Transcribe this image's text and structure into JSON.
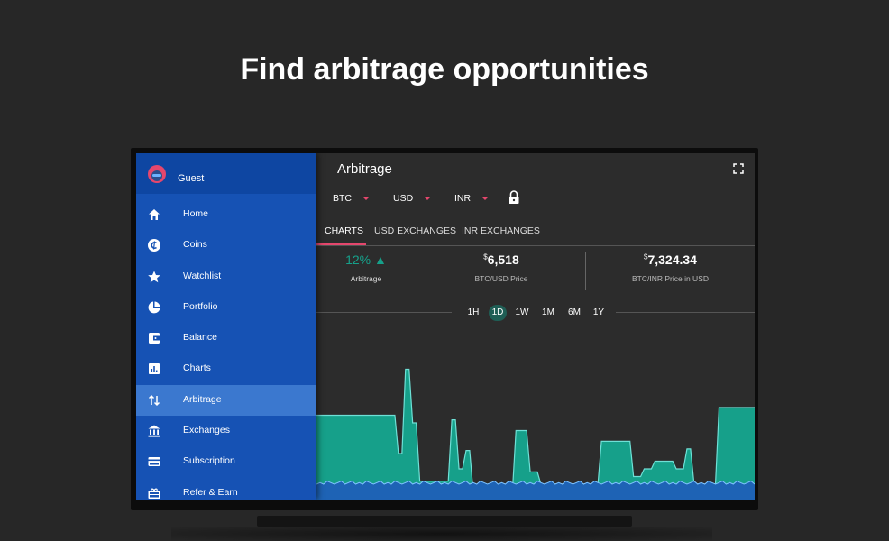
{
  "headline": "Find arbitrage opportunities",
  "drawer": {
    "user": "Guest",
    "items": [
      {
        "label": "Home",
        "icon": "home-icon"
      },
      {
        "label": "Coins",
        "icon": "coin-icon"
      },
      {
        "label": "Watchlist",
        "icon": "star-icon"
      },
      {
        "label": "Portfolio",
        "icon": "pie-chart-icon"
      },
      {
        "label": "Balance",
        "icon": "wallet-icon"
      },
      {
        "label": "Charts",
        "icon": "bar-chart-icon"
      },
      {
        "label": "Arbitrage",
        "icon": "swap-arrows-icon",
        "active": true
      },
      {
        "label": "Exchanges",
        "icon": "bank-icon"
      },
      {
        "label": "Subscription",
        "icon": "card-icon"
      },
      {
        "label": "Refer & Earn",
        "icon": "gift-icon"
      }
    ]
  },
  "main": {
    "title": "Arbitrage",
    "selectors": {
      "coin": "BTC",
      "currency1": "USD",
      "currency2": "INR"
    },
    "tabs": [
      "CHARTS",
      "USD EXCHANGES",
      "INR EXCHANGES"
    ],
    "stats": {
      "arbitrage_value": "12%",
      "arbitrage_label": "Arbitrage",
      "usd_symbol": "$",
      "usd_price": "6,518",
      "usd_label": "BTC/USD Price",
      "inr_symbol": "$",
      "inr_price": "7,324.34",
      "inr_label": "BTC/INR Price in USD"
    },
    "ranges": [
      "1H",
      "1D",
      "1W",
      "1M",
      "6M",
      "1Y"
    ],
    "active_range": "1D"
  },
  "colors": {
    "accent": "#e5476d",
    "teal": "#16a08a",
    "blue_area": "#1e63b5",
    "drawer": "#1652b4",
    "drawer_active": "#3b78cf"
  },
  "chart_data": {
    "type": "area",
    "series": [
      {
        "values": [
          55,
          55,
          55,
          55,
          55,
          55,
          55,
          55,
          55,
          55,
          55,
          55,
          55,
          55,
          55,
          55,
          55,
          55,
          55,
          55,
          55,
          55,
          55,
          30,
          30,
          85,
          85,
          50,
          50,
          12,
          12,
          12,
          12,
          12,
          12,
          12,
          12,
          12,
          52,
          52,
          20,
          20,
          32,
          32,
          5,
          5,
          5,
          5,
          5,
          5,
          5,
          5,
          5,
          5,
          5,
          5,
          45,
          45,
          45,
          45,
          18,
          18,
          18,
          10,
          10,
          10,
          10,
          10,
          10,
          10,
          10,
          8,
          8,
          8,
          8,
          10,
          10,
          10,
          10,
          10,
          38,
          38,
          38,
          38,
          38,
          38,
          38,
          38,
          38,
          15,
          15,
          15,
          20,
          20,
          20,
          25,
          25,
          25,
          25,
          25,
          25,
          20,
          20,
          20,
          33,
          33,
          10,
          10,
          10,
          10,
          10,
          10,
          10,
          60,
          60,
          60,
          60,
          60,
          60,
          60,
          60,
          60,
          60,
          60
        ]
      },
      {
        "values": [
          10,
          11,
          10,
          12,
          11,
          10,
          11,
          12,
          10,
          11,
          12,
          10,
          11,
          10,
          12,
          11,
          10,
          11,
          12,
          10,
          11,
          10,
          12,
          11,
          10,
          11,
          12,
          10,
          11,
          10,
          12,
          11,
          10,
          11,
          12,
          10,
          11,
          10,
          12,
          11,
          10,
          11,
          12,
          10,
          11,
          10,
          12,
          11,
          10,
          11,
          12,
          10,
          11,
          10,
          12,
          11,
          10,
          11,
          12,
          10,
          11,
          10,
          12,
          11,
          10,
          11,
          12,
          10,
          11,
          10,
          12,
          11,
          10,
          11,
          12,
          10,
          11,
          10,
          12,
          11,
          10,
          11,
          12,
          10,
          11,
          10,
          12,
          11,
          10,
          11,
          12,
          10,
          11,
          10,
          12,
          11,
          10,
          11,
          12,
          10,
          11,
          10,
          12,
          11,
          10,
          11,
          12,
          10,
          11,
          10,
          12,
          11,
          10,
          11,
          12,
          10,
          11,
          10,
          12,
          11,
          10,
          11,
          12,
          10,
          11
        ]
      }
    ]
  }
}
